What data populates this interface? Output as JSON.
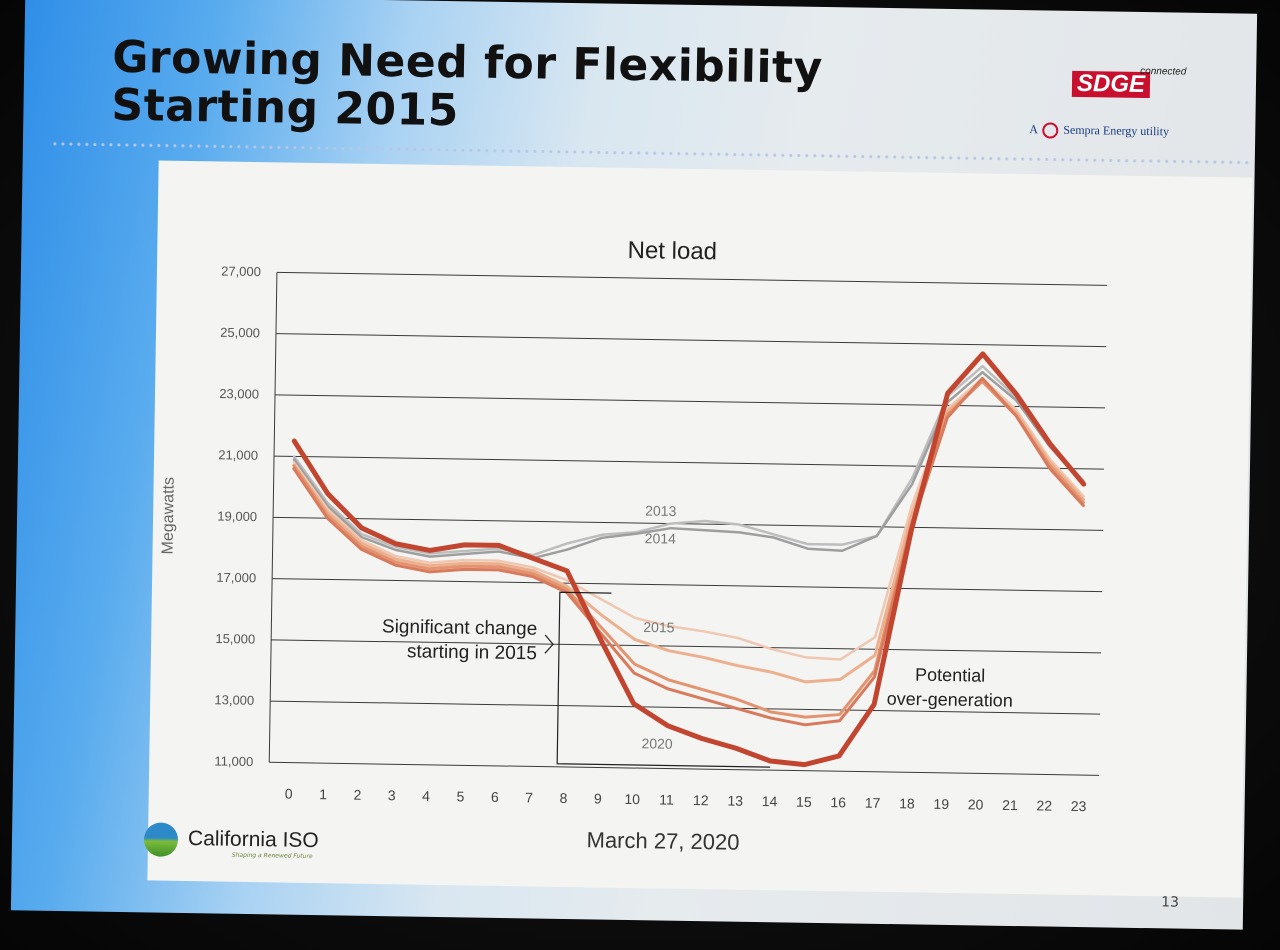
{
  "slide": {
    "title_line1": "Growing Need for Flexibility",
    "title_line2": "Starting 2015",
    "logo": {
      "brand": "SDGE",
      "connected": "connected",
      "tagline_prefix": "A",
      "tagline": "Sempra Energy utility"
    },
    "footer_logo": {
      "name": "California ISO",
      "tagline": "Shaping a Renewed Future"
    },
    "page_number": "13"
  },
  "chart_data": {
    "type": "line",
    "title": "Net load",
    "xlabel": "March 27, 2020",
    "ylabel": "Megawatts",
    "x": [
      0,
      1,
      2,
      3,
      4,
      5,
      6,
      7,
      8,
      9,
      10,
      11,
      12,
      13,
      14,
      15,
      16,
      17,
      18,
      19,
      20,
      21,
      22,
      23
    ],
    "ylim": [
      11000,
      27000
    ],
    "yticks": [
      11000,
      13000,
      15000,
      17000,
      19000,
      21000,
      23000,
      25000,
      27000
    ],
    "ytick_labels": [
      "11,000",
      "13,000",
      "15,000",
      "17,000",
      "19,000",
      "21,000",
      "23,000",
      "25,000",
      "27,000"
    ],
    "grid": true,
    "series": [
      {
        "name": "2013",
        "color": "#bdbdbd",
        "values": [
          21000,
          19500,
          18500,
          18100,
          17900,
          18000,
          18100,
          17900,
          18300,
          18600,
          18700,
          19000,
          19100,
          19000,
          18700,
          18400,
          18400,
          18700,
          20600,
          23300,
          24300,
          23300,
          21800,
          20600
        ]
      },
      {
        "name": "2014",
        "color": "#9e9e9e",
        "values": [
          20900,
          19400,
          18400,
          18000,
          17800,
          17900,
          18000,
          17800,
          18100,
          18500,
          18650,
          18850,
          18800,
          18750,
          18600,
          18250,
          18200,
          18700,
          20400,
          23100,
          24100,
          23200,
          21700,
          20500
        ]
      },
      {
        "name": "",
        "color": "#f0c7b0",
        "values": [
          20800,
          19300,
          18300,
          17800,
          17600,
          17700,
          17700,
          17500,
          17100,
          16500,
          15900,
          15650,
          15500,
          15300,
          14950,
          14700,
          14650,
          15400,
          19700,
          22900,
          23900,
          22900,
          21300,
          20100
        ]
      },
      {
        "name": "2015",
        "color": "#ecb08f",
        "values": [
          20700,
          19200,
          18200,
          17700,
          17500,
          17600,
          17600,
          17400,
          16900,
          16000,
          15200,
          14850,
          14650,
          14400,
          14200,
          13900,
          14000,
          14800,
          19400,
          22800,
          23800,
          22800,
          21200,
          20000
        ]
      },
      {
        "name": "",
        "color": "#e3936f",
        "values": [
          20700,
          19100,
          18100,
          17600,
          17400,
          17500,
          17500,
          17300,
          16800,
          15600,
          14400,
          13900,
          13600,
          13300,
          12900,
          12750,
          12850,
          14300,
          19100,
          22700,
          23800,
          22700,
          21100,
          19900
        ]
      },
      {
        "name": "",
        "color": "#d87a5b",
        "values": [
          20600,
          19000,
          18000,
          17500,
          17300,
          17400,
          17400,
          17200,
          16700,
          15400,
          14100,
          13600,
          13300,
          13000,
          12700,
          12500,
          12650,
          14100,
          19000,
          22600,
          23900,
          22700,
          21000,
          19800
        ]
      },
      {
        "name": "2020",
        "color": "#c2452f",
        "values": [
          21500,
          19800,
          18700,
          18200,
          18000,
          18200,
          18200,
          17800,
          17400,
          15200,
          13100,
          12400,
          12000,
          11700,
          11300,
          11200,
          11500,
          13200,
          18900,
          23400,
          24700,
          23400,
          21800,
          20500
        ]
      }
    ],
    "annotations": [
      {
        "text_line1": "Significant change",
        "text_line2": "starting in 2015"
      },
      {
        "text_line1": "Potential",
        "text_line2": "over-generation"
      }
    ]
  }
}
